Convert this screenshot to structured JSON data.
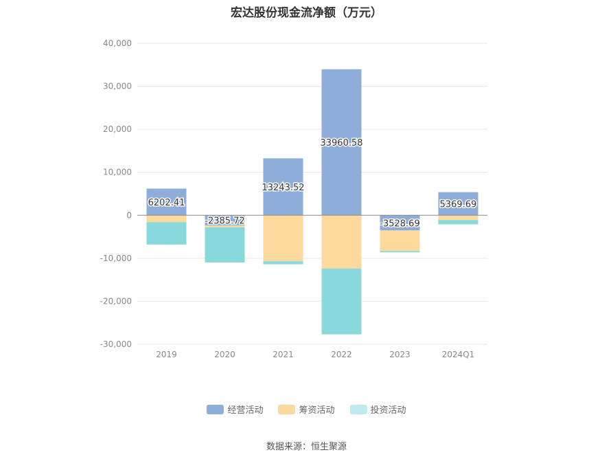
{
  "chart_data": {
    "type": "bar",
    "stacked": true,
    "title": "宏达股份现金流净额（万元）",
    "xlabel": "",
    "ylabel": "",
    "categories": [
      "2019",
      "2020",
      "2021",
      "2022",
      "2023",
      "2024Q1"
    ],
    "ylim": [
      -30000,
      40000
    ],
    "yticks": [
      40000,
      30000,
      20000,
      10000,
      0,
      -10000,
      -20000,
      -30000
    ],
    "ytick_labels": [
      "40,000",
      "30,000",
      "20,000",
      "10,000",
      "0",
      "-10,000",
      "-20,000",
      "-30,000"
    ],
    "grid": true,
    "legend_position": "bottom",
    "series": [
      {
        "name": "经营活动",
        "color": "#8eadd9",
        "values": [
          6202.41,
          -2385.72,
          13243.52,
          33960.58,
          -3528.69,
          5369.69
        ],
        "labels": [
          "6202.41",
          "-2385.72",
          "13243.52",
          "33960.58",
          "-3528.69",
          "5369.69"
        ]
      },
      {
        "name": "筹资活动",
        "color": "#fdd99e",
        "values": [
          -1600,
          -400,
          -10700,
          -12400,
          -4800,
          -1100
        ]
      },
      {
        "name": "投资活动",
        "color": "#88d8dc",
        "values": [
          -5200,
          -8200,
          -700,
          -15300,
          -300,
          -1000
        ]
      }
    ]
  },
  "legend": {
    "items": [
      {
        "label": "经营活动",
        "color": "#8eadd9"
      },
      {
        "label": "筹资活动",
        "color": "#fdd99e"
      },
      {
        "label": "投资活动",
        "color": "#bfe9ec"
      }
    ]
  },
  "source_note": "数据来源：恒生聚源"
}
